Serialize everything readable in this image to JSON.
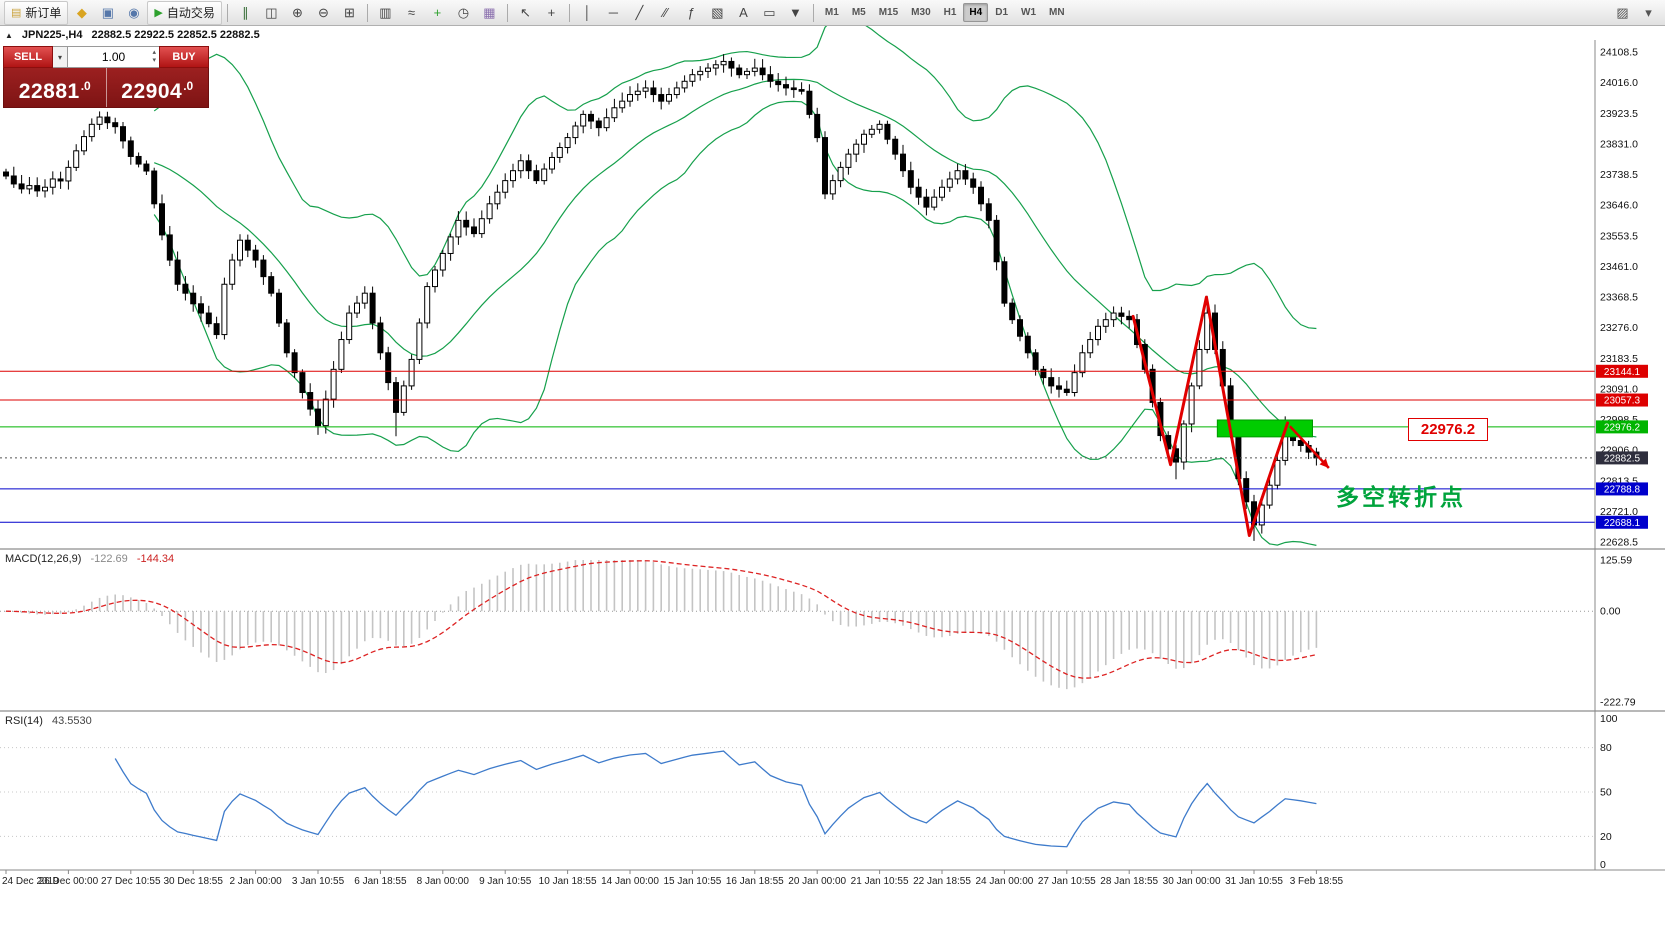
{
  "chrome": {
    "toggle_glyph": "▲",
    "spin_up": "▴",
    "spin_down": "▾",
    "vol_drop": "▾"
  },
  "toolbar": {
    "active_timeframe": "H4",
    "items": [
      {
        "type": "button",
        "name": "new-order-button",
        "glyph": "▤",
        "glyph_color": "#caa23a",
        "label": "新订单"
      },
      {
        "type": "icon",
        "name": "chart-shot-icon",
        "glyph": "◆",
        "color": "#d9a421"
      },
      {
        "type": "icon",
        "name": "profiles-icon",
        "glyph": "▣",
        "color": "#5577aa"
      },
      {
        "type": "icon",
        "name": "market-watch-icon",
        "glyph": "◉",
        "color": "#5577aa"
      },
      {
        "type": "button",
        "name": "autotrading-button",
        "glyph": "▶",
        "glyph_color": "#2ea12e",
        "label": "自动交易"
      },
      {
        "type": "sep"
      },
      {
        "type": "icon",
        "name": "bar-chart-icon",
        "glyph": "∥",
        "color": "#3a6f3a"
      },
      {
        "type": "icon",
        "name": "candlestick-chart-icon",
        "glyph": "◫",
        "color": "#444444"
      },
      {
        "type": "icon",
        "name": "zoom-in-icon",
        "glyph": "⊕",
        "color": "#444444"
      },
      {
        "type": "icon",
        "name": "zoom-out-icon",
        "glyph": "⊖",
        "color": "#444444"
      },
      {
        "type": "icon",
        "name": "tile-windows-icon",
        "glyph": "⊞",
        "color": "#444444"
      },
      {
        "type": "sep"
      },
      {
        "type": "icon",
        "name": "bars-small-icon",
        "glyph": "▥",
        "color": "#444444"
      },
      {
        "type": "icon",
        "name": "line-chart-icon",
        "glyph": "≈",
        "color": "#444444"
      },
      {
        "type": "icon",
        "name": "indicators-icon",
        "glyph": "+",
        "color": "#2ea12e"
      },
      {
        "type": "icon",
        "name": "periods-icon",
        "glyph": "◷",
        "color": "#444444"
      },
      {
        "type": "icon",
        "name": "templates-icon",
        "glyph": "▦",
        "color": "#8a6fae"
      },
      {
        "type": "sep"
      },
      {
        "type": "icon",
        "name": "cursor-icon",
        "glyph": "↖",
        "color": "#444444"
      },
      {
        "type": "icon",
        "name": "crosshair-icon",
        "glyph": "+",
        "color": "#444444"
      },
      {
        "type": "sep"
      },
      {
        "type": "icon",
        "name": "vertical-line-icon",
        "glyph": "│",
        "color": "#444444"
      },
      {
        "type": "icon",
        "name": "horizontal-line-icon",
        "glyph": "─",
        "color": "#444444"
      },
      {
        "type": "icon",
        "name": "trendline-icon",
        "glyph": "╱",
        "color": "#444444"
      },
      {
        "type": "icon",
        "name": "channel-icon",
        "glyph": "∕∕",
        "color": "#444444"
      },
      {
        "type": "icon",
        "name": "fibonacci-icon",
        "glyph": "ƒ",
        "color": "#444444"
      },
      {
        "type": "icon",
        "name": "shapes-icon",
        "glyph": "▧",
        "color": "#444444"
      },
      {
        "type": "icon",
        "name": "text-icon",
        "glyph": "A",
        "color": "#444444"
      },
      {
        "type": "icon",
        "name": "text-label-icon",
        "glyph": "▭",
        "color": "#444444"
      },
      {
        "type": "icon",
        "name": "arrows-icon",
        "glyph": "▼",
        "color": "#444444"
      },
      {
        "type": "sep"
      },
      {
        "type": "tf",
        "label": "M1"
      },
      {
        "type": "tf",
        "label": "M5"
      },
      {
        "type": "tf",
        "label": "M15"
      },
      {
        "type": "tf",
        "label": "M30"
      },
      {
        "type": "tf",
        "label": "H1"
      },
      {
        "type": "tf",
        "label": "H4"
      },
      {
        "type": "tf",
        "label": "D1"
      },
      {
        "type": "tf",
        "label": "W1"
      },
      {
        "type": "tf",
        "label": "MN"
      },
      {
        "type": "spacer"
      },
      {
        "type": "icon",
        "name": "draw-tools-icon",
        "glyph": "▨",
        "color": "#555555"
      },
      {
        "type": "icon",
        "name": "more-tools-icon",
        "glyph": "▾",
        "color": "#555555"
      }
    ]
  },
  "symbol_info": {
    "title": "JPN225-,H4",
    "ohlc": "22882.5 22922.5 22852.5 22882.5"
  },
  "order_panel": {
    "sell": {
      "label": "SELL",
      "price": "22881",
      "frac": ".0"
    },
    "buy": {
      "label": "BUY",
      "price": "22904",
      "frac": ".0"
    },
    "volume": "1.00"
  },
  "chart_data": {
    "type": "candlestick",
    "symbol": "JPN225-",
    "timeframe": "H4",
    "closes": [
      23734,
      23710,
      23695,
      23705,
      23689,
      23700,
      23725,
      23719,
      23760,
      23810,
      23853,
      23890,
      23912,
      23895,
      23883,
      23840,
      23793,
      23770,
      23749,
      23650,
      23556,
      23480,
      23407,
      23380,
      23348,
      23320,
      23288,
      23255,
      23407,
      23480,
      23540,
      23510,
      23480,
      23430,
      23380,
      23290,
      23200,
      23140,
      23080,
      23030,
      22980,
      23060,
      23150,
      23240,
      23320,
      23350,
      23380,
      23290,
      23200,
      23110,
      23020,
      23100,
      23180,
      23290,
      23400,
      23450,
      23500,
      23550,
      23600,
      23580,
      23560,
      23605,
      23650,
      23685,
      23720,
      23750,
      23780,
      23750,
      23720,
      23755,
      23790,
      23820,
      23850,
      23885,
      23920,
      23900,
      23880,
      23910,
      23940,
      23960,
      23980,
      23990,
      24000,
      23980,
      23960,
      23980,
      24000,
      24020,
      24040,
      24050,
      24060,
      24070,
      24080,
      24060,
      24040,
      24050,
      24060,
      24040,
      24020,
      24010,
      24000,
      23995,
      23990,
      23920,
      23850,
      23680,
      23720,
      23760,
      23800,
      23830,
      23860,
      23875,
      23890,
      23845,
      23800,
      23750,
      23700,
      23670,
      23640,
      23670,
      23700,
      23725,
      23750,
      23725,
      23700,
      23650,
      23600,
      23475,
      23350,
      23300,
      23250,
      23200,
      23150,
      23125,
      23100,
      23090,
      23080,
      23140,
      23200,
      23240,
      23280,
      23300,
      23320,
      23310,
      23300,
      23225,
      23150,
      23050,
      22950,
      22910,
      22870,
      22985,
      23100,
      23210,
      23320,
      23210,
      23100,
      22960,
      22820,
      22750,
      22680,
      22740,
      22800,
      22875,
      22950,
      22935,
      22920,
      22900,
      22882.5
    ],
    "wick_overrides": {
      "40": {
        "low": 22952
      },
      "50": {
        "low": 22948
      },
      "92": {
        "high": 24102
      },
      "150": {
        "low": 22818
      },
      "154": {
        "high": 23372
      },
      "160": {
        "low": 22632
      },
      "164": {
        "high": 23008
      }
    },
    "bollinger": {
      "period": 20,
      "deviation": 2,
      "color": "#16a04c"
    },
    "price_axis": {
      "min": 22628.5,
      "max": 24108.5,
      "ticks": [
        24108.5,
        24016.0,
        23923.5,
        23831.0,
        23738.5,
        23646.0,
        23553.5,
        23461.0,
        23368.5,
        23276.0,
        23183.5,
        23091.0,
        22998.5,
        22906.0,
        22813.5,
        22721.0,
        22628.5
      ]
    },
    "hlines": [
      {
        "price": 23144.1,
        "label": "23144.1",
        "color": "#dd0000"
      },
      {
        "price": 23057.3,
        "label": "23057.3",
        "color": "#dd0000"
      },
      {
        "price": 22976.2,
        "label": "22976.2",
        "color": "#00b400"
      },
      {
        "price": 22788.8,
        "label": "22788.8",
        "color": "#0000cc"
      },
      {
        "price": 22688.1,
        "label": "22688.1",
        "color": "#0000cc"
      }
    ],
    "last_price": {
      "value": 22882.5,
      "label": "22882.5",
      "tag_color": "#2e2e3d"
    },
    "annotations": {
      "green_box": {
        "bar_start": 155.3,
        "bar_end": 167.5,
        "price_top": 22997,
        "price_bottom": 22946,
        "fill": "#00cc00",
        "stroke": "#009900"
      },
      "zigzag": {
        "points": [
          [
            144.5,
            23310
          ],
          [
            149.3,
            22862
          ],
          [
            153.9,
            23368
          ],
          [
            159.4,
            22648
          ],
          [
            164.3,
            22988
          ]
        ],
        "color": "#e10000",
        "width": 3
      },
      "arrow": {
        "from": [
          164.6,
          22978
        ],
        "to": [
          169.6,
          22852
        ],
        "color": "#e10000",
        "width": 2.5
      },
      "text": {
        "label": "多空转折点",
        "color": "#00a33c"
      },
      "callout": {
        "label": "22976.2",
        "color": "#e00000"
      }
    },
    "macd": {
      "name": "MACD(12,26,9)",
      "value_main": "-122.69",
      "value_signal": "-144.34",
      "axis": [
        "125.59",
        "0.00",
        "-222.79"
      ],
      "axis_range": [
        125.59,
        -222.79
      ],
      "hist_color": "#c4c4c4",
      "signal_color": "#dd2222"
    },
    "rsi": {
      "name": "RSI(14)",
      "value": "43.5530",
      "axis": [
        "100",
        "80",
        "50",
        "20",
        "0"
      ],
      "levels": [
        80,
        50,
        20
      ],
      "line_color": "#3e7bcb"
    },
    "time_labels": [
      "24 Dec 2019",
      "26 Dec 00:00",
      "27 Dec 10:55",
      "30 Dec 18:55",
      "2 Jan 00:00",
      "3 Jan 10:55",
      "6 Jan 18:55",
      "8 Jan 00:00",
      "9 Jan 10:55",
      "10 Jan 18:55",
      "14 Jan 00:00",
      "15 Jan 10:55",
      "16 Jan 18:55",
      "20 Jan 00:00",
      "21 Jan 10:55",
      "22 Jan 18:55",
      "24 Jan 00:00",
      "27 Jan 10:55",
      "28 Jan 18:55",
      "30 Jan 00:00",
      "31 Jan 10:55",
      "3 Feb 18:55"
    ]
  }
}
